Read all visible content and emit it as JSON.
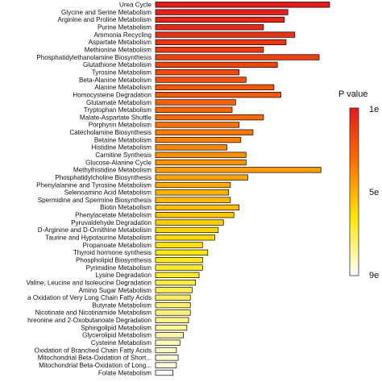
{
  "chart_data": {
    "type": "bar",
    "orientation": "horizontal",
    "categories": [
      "Urea Cycle",
      "Glycine and Serine Metabolism",
      "Arginine and Proline Metabolism",
      "Purine Metabolism",
      "Ammonia Recycling",
      "Aspartate Metabolism",
      "Methionine Metabolism",
      "Phosphatidylethanolamine Biosynthesis",
      "Glutathione Metabolism",
      "Tyrosine Metabolism",
      "Beta-Alanine Metabolism",
      "Alanine Metabolism",
      "Homocysteine Degradation",
      "Glutamate Metabolism",
      "Tryptophan Metabolism",
      "Malate-Aspartate Shuttle",
      "Porphyrin Metabolism",
      "Catecholamine Biosynthesis",
      "Betaine Metabolism",
      "Histidine Metabolism",
      "Carnitine Synthesis",
      "Glucose-Alanine Cycle",
      "Methylhistidine Metabolism",
      "Phosphatidylcholine Biosynthesis",
      "Phenylalanine and Tyrosine Metabolism",
      "Selenoamino Acid Metabolism",
      "Spermidine and Spermine Biosynthesis",
      "Biotin Metabolism",
      "Phenylacetate Metabolism",
      "Pyruvaldehyde Degradation",
      "D-Arginine and D-Ornithine Metabolism",
      "Taurine and Hypotaurine Metabolism",
      "Propanoate Metabolism",
      "Thyroid hormone synthesis",
      "Phospholipid Biosynthesis",
      "Pyrimidine Metabolism",
      "Lysine Degradation",
      "Valine, Leucine and Isoleucine Degradation",
      "Amino Sugar Metabolism",
      "a Oxidation of Very Long Chain Fatty Acids",
      "Butyrate Metabolism",
      "Nicotinate and Nicotinamide Metabolism",
      "hreonine and 2-Oxobutanoate Degradation",
      "Sphingolipid Metabolism",
      "Glycerolipid Metabolism",
      "Cysteine Metabolism",
      "Oxidation of Branched Chain Fatty Acids",
      "Mitochondrial Beta-Oxidation of Short...",
      "Mitochondrial Beta-Oxidation of Long...",
      "Folate Metabolism"
    ],
    "values": [
      10.0,
      7.6,
      7.4,
      6.2,
      8.0,
      7.5,
      6.2,
      9.4,
      7.0,
      4.8,
      5.2,
      6.8,
      7.2,
      4.6,
      4.4,
      6.2,
      4.8,
      5.6,
      4.9,
      4.1,
      5.2,
      5.2,
      9.5,
      5.3,
      4.3,
      4.2,
      4.3,
      4.8,
      4.5,
      3.9,
      3.6,
      3.4,
      2.7,
      3.0,
      2.7,
      2.7,
      2.5,
      2.3,
      2.1,
      2.0,
      2.0,
      2.0,
      1.9,
      1.8,
      1.6,
      1.4,
      1.2,
      1.3,
      1.2,
      1.0
    ],
    "pvalue_fraction": [
      0.0,
      0.02,
      0.04,
      0.06,
      0.08,
      0.1,
      0.12,
      0.14,
      0.16,
      0.18,
      0.2,
      0.22,
      0.24,
      0.26,
      0.28,
      0.3,
      0.32,
      0.34,
      0.36,
      0.38,
      0.4,
      0.42,
      0.44,
      0.46,
      0.48,
      0.5,
      0.52,
      0.54,
      0.56,
      0.58,
      0.6,
      0.62,
      0.64,
      0.66,
      0.68,
      0.7,
      0.72,
      0.74,
      0.76,
      0.78,
      0.8,
      0.82,
      0.84,
      0.86,
      0.88,
      0.9,
      0.92,
      0.94,
      0.96,
      1.0
    ],
    "xlim": [
      0,
      10
    ],
    "grid": false,
    "legend": {
      "title": "P value",
      "position": "right",
      "ticks": [
        "1e",
        "5e",
        "9e"
      ],
      "colors": [
        "#e41a1c",
        "#ff7f00",
        "#ffff33",
        "#ffffff"
      ]
    }
  }
}
